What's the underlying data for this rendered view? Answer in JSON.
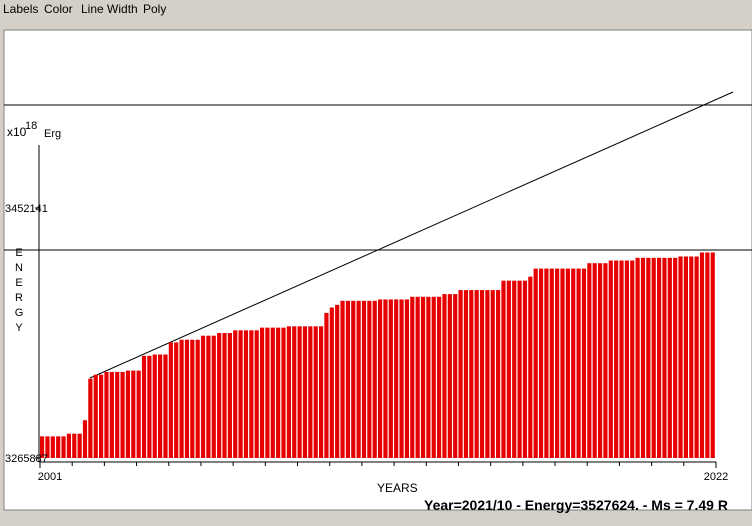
{
  "menu": [
    "Labels",
    "Color",
    "Line Width",
    "Poly"
  ],
  "chart_data": {
    "type": "bar",
    "y_unit": "x10",
    "y_exponent": "18",
    "y_unit_name": "Erg",
    "ylabel": "ENERGY",
    "xlabel": "YEARS",
    "color": "#e60000",
    "ylim": [
      3265887,
      3499072
    ],
    "yticks": [
      3265887,
      3452141
    ],
    "xlim": [
      2001,
      2022
    ],
    "xticks": [
      2001,
      2022
    ],
    "values": [
      3282000,
      3282000,
      3282000,
      3282000,
      3282000,
      3284000,
      3284000,
      3284000,
      3294000,
      3325000,
      3328000,
      3328000,
      3330000,
      3330000,
      3330000,
      3330000,
      3331000,
      3331000,
      3331000,
      3342000,
      3342000,
      3343000,
      3343000,
      3343000,
      3352000,
      3352000,
      3354000,
      3354000,
      3354000,
      3354000,
      3357000,
      3357000,
      3357000,
      3359000,
      3359000,
      3359000,
      3361000,
      3361000,
      3361000,
      3361000,
      3361000,
      3363000,
      3363000,
      3363000,
      3363000,
      3363000,
      3364000,
      3364000,
      3364000,
      3364000,
      3364000,
      3364000,
      3364000,
      3374000,
      3378000,
      3380000,
      3383000,
      3383000,
      3383000,
      3383000,
      3383000,
      3383000,
      3383000,
      3384000,
      3384000,
      3384000,
      3384000,
      3384000,
      3384000,
      3386000,
      3386000,
      3386000,
      3386000,
      3386000,
      3386000,
      3388000,
      3388000,
      3388000,
      3391000,
      3391000,
      3391000,
      3391000,
      3391000,
      3391000,
      3391000,
      3391000,
      3398000,
      3398000,
      3398000,
      3398000,
      3398000,
      3401000,
      3407000,
      3407000,
      3407000,
      3407000,
      3407000,
      3407000,
      3407000,
      3407000,
      3407000,
      3407000,
      3411000,
      3411000,
      3411000,
      3411000,
      3413000,
      3413000,
      3413000,
      3413000,
      3413000,
      3415000,
      3415000,
      3415000,
      3415000,
      3415000,
      3415000,
      3415000,
      3415000,
      3416000,
      3416000,
      3416000,
      3416000,
      3419000,
      3419000,
      3419000
    ]
  },
  "status": "Year=2021/10 - Energy=3527624. - Ms = 7.49 R"
}
